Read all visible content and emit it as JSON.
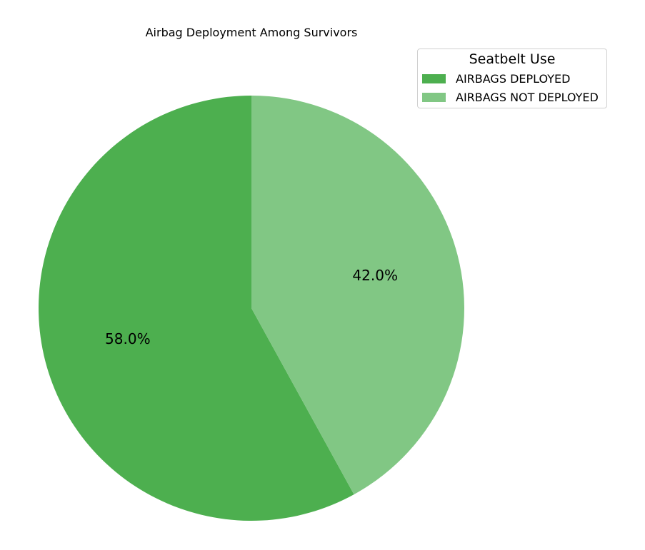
{
  "chart_data": {
    "type": "pie",
    "title": "Airbag Deployment Among Survivors",
    "categories": [
      "AIRBAGS DEPLOYED",
      "AIRBAGS NOT DEPLOYED"
    ],
    "values": [
      58.0,
      42.0
    ],
    "labels": [
      "58.0%",
      "42.0%"
    ],
    "colors": [
      "#4daf4f",
      "#81c784"
    ],
    "legend": {
      "title": "Seatbelt Use",
      "placement": "top-right"
    }
  }
}
